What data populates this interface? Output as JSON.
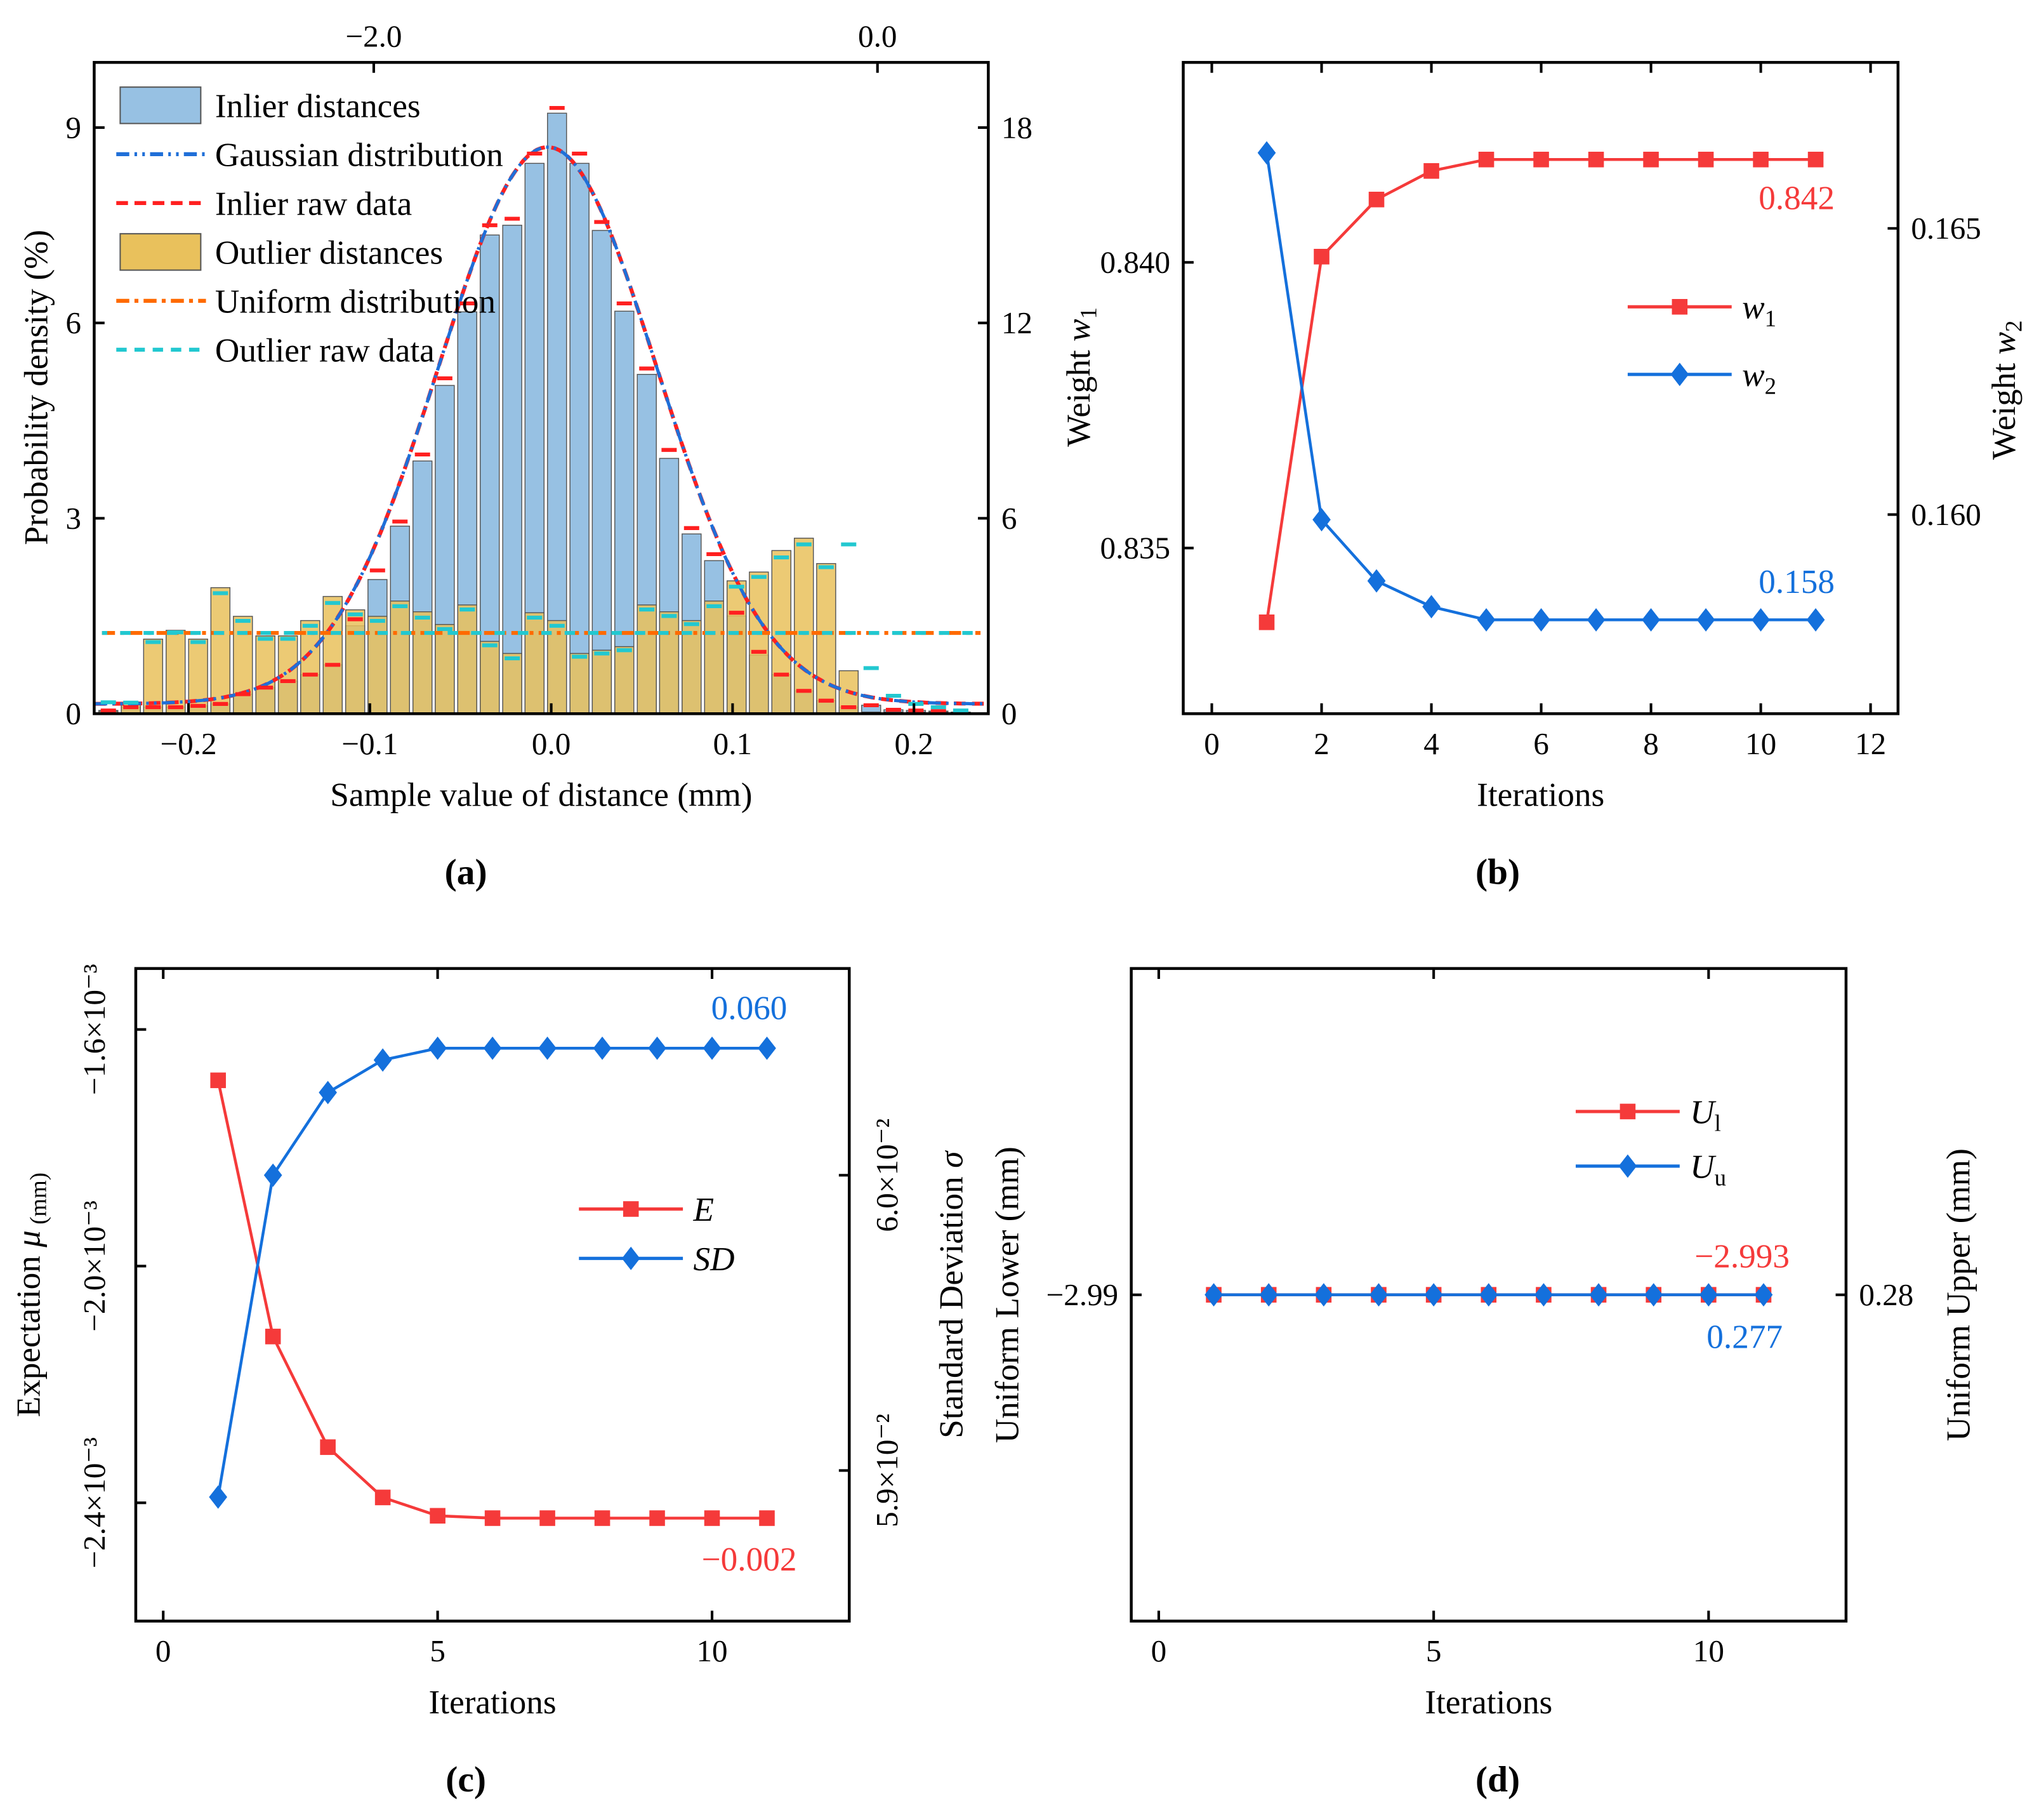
{
  "chart_data": [
    {
      "panel": "a",
      "type": "bar",
      "panel_label": "(a)",
      "xlabel": "Sample value of distance (mm)",
      "ylabel": "Probability density (%)",
      "xlim": [
        -0.252,
        0.241
      ],
      "ylim": [
        0,
        10
      ],
      "y2lim": [
        0,
        20
      ],
      "x2lim": [
        -3.11,
        0.44
      ],
      "xticks": [
        -0.2,
        -0.1,
        0.0,
        0.1,
        0.2
      ],
      "xtick_labels": [
        "−0.2",
        "−0.1",
        "0.0",
        "0.1",
        "0.2"
      ],
      "x2ticks": [
        -2.0,
        0.0
      ],
      "x2tick_labels": [
        "−2.0",
        "0.0"
      ],
      "yticks": [
        0,
        3,
        6,
        9
      ],
      "ytick_labels": [
        "0",
        "3",
        "6",
        "9"
      ],
      "y2ticks": [
        0,
        6,
        12,
        18
      ],
      "y2tick_labels": [
        "0",
        "6",
        "12",
        "18"
      ],
      "bin_width": 0.0105,
      "bin_centers": [
        -0.2442,
        -0.2318,
        -0.2195,
        -0.2071,
        -0.1947,
        -0.1824,
        -0.17,
        -0.1576,
        -0.1452,
        -0.1329,
        -0.1205,
        -0.1081,
        -0.0958,
        -0.0834,
        -0.071,
        -0.0587,
        -0.0463,
        -0.0339,
        -0.0215,
        -0.0092,
        0.0032,
        0.0156,
        0.0279,
        0.0403,
        0.0527,
        0.065,
        0.0774,
        0.0898,
        0.1022,
        0.1145,
        0.1269,
        0.1393,
        0.1516,
        0.164,
        0.1764,
        0.1887,
        0.2011,
        0.2135,
        0.2258
      ],
      "inlier_distances": [
        0.05,
        0.1,
        0.1,
        0.1,
        0.12,
        0.15,
        0.3,
        0.4,
        0.5,
        0.6,
        0.75,
        1.35,
        2.06,
        2.88,
        3.88,
        5.04,
        6.17,
        7.35,
        7.5,
        8.45,
        9.22,
        8.45,
        7.42,
        6.18,
        5.21,
        3.92,
        2.76,
        2.35,
        1.5,
        0.9,
        0.6,
        0.35,
        0.2,
        0.1,
        0.13,
        0.06,
        0.05,
        0.04,
        0.02
      ],
      "inlier_raw_data": [
        0.05,
        0.1,
        0.1,
        0.1,
        0.12,
        0.15,
        0.3,
        0.4,
        0.5,
        0.6,
        0.75,
        1.45,
        2.2,
        2.95,
        3.98,
        5.15,
        6.3,
        7.5,
        7.6,
        8.6,
        9.3,
        8.6,
        7.55,
        6.3,
        5.3,
        4.05,
        2.85,
        2.45,
        1.55,
        0.95,
        0.6,
        0.35,
        0.2,
        0.1,
        0.13,
        0.06,
        0.05,
        0.04,
        0.02
      ],
      "outlier_distances": [
        0.07,
        0.34,
        2.29,
        2.56,
        2.29,
        3.87,
        2.99,
        2.39,
        2.39,
        2.86,
        3.6,
        3.19,
        2.99,
        3.46,
        3.13,
        2.74,
        3.34,
        2.22,
        1.85,
        3.1,
        2.86,
        1.85,
        1.95,
        2.06,
        3.34,
        3.13,
        2.86,
        3.46,
        4.08,
        4.35,
        5.01,
        5.39,
        4.61,
        1.32,
        0.05,
        0.05,
        0.05,
        0.05,
        0.05
      ],
      "outlier_raw_data": [
        0.35,
        0.34,
        2.2,
        2.5,
        2.2,
        3.7,
        2.85,
        2.3,
        2.3,
        2.7,
        3.4,
        3.05,
        2.85,
        3.3,
        2.95,
        2.6,
        3.2,
        2.1,
        1.7,
        2.95,
        2.7,
        1.75,
        1.85,
        1.95,
        3.2,
        3.0,
        2.75,
        3.3,
        3.9,
        4.2,
        4.8,
        5.2,
        4.5,
        5.2,
        1.4,
        0.55,
        0.3,
        0.2,
        0.1
      ],
      "gaussian": {
        "mu": -0.002,
        "sigma": 0.06,
        "peak": 8.7,
        "base": 0.15
      },
      "uniform_level": 1.24,
      "legend": [
        "Inlier distances",
        "Gaussian distribution",
        "Inlier raw data",
        "Outlier distances",
        "Uniform distribution",
        "Outlier raw data"
      ],
      "legend_position": "top-left",
      "colors": {
        "inlier": "#97c1e3",
        "outlier": "#e9c15c",
        "gaussian": "#1f6fd8",
        "inlier_raw": "#ff2020",
        "uniform": "#ff6a00",
        "outlier_raw": "#22c8d0"
      }
    },
    {
      "panel": "b",
      "type": "line",
      "panel_label": "(b)",
      "xlabel": "Iterations",
      "ylabel": [
        "Weight ",
        "w",
        "1"
      ],
      "y2label": [
        "Weight ",
        "w",
        "2"
      ],
      "xlim": [
        -0.52,
        12.5
      ],
      "ylim": [
        0.8321,
        0.8435
      ],
      "y2lim": [
        0.15652,
        0.1679
      ],
      "xticks": [
        0,
        2,
        4,
        6,
        8,
        10,
        12
      ],
      "xtick_labels": [
        "0",
        "2",
        "4",
        "6",
        "8",
        "10",
        "12"
      ],
      "yticks": [
        0.835,
        0.84
      ],
      "ytick_labels": [
        "0.835",
        "0.840"
      ],
      "y2ticks": [
        0.16,
        0.165
      ],
      "y2tick_labels": [
        "0.160",
        "0.165"
      ],
      "x": [
        1,
        2,
        3,
        4,
        5,
        6,
        7,
        8,
        9,
        10,
        11
      ],
      "series": [
        {
          "name": "w",
          "sub": "1",
          "axis": "left",
          "marker": "square",
          "color": "#f53a3a",
          "values": [
            0.8337,
            0.8401,
            0.8411,
            0.8416,
            0.8418,
            0.8418,
            0.8418,
            0.8418,
            0.8418,
            0.8418,
            0.8418
          ],
          "annotation": "0.842"
        },
        {
          "name": "w",
          "sub": "2",
          "axis": "right",
          "marker": "diamond",
          "color": "#1470dc",
          "values": [
            0.16632,
            0.15991,
            0.15884,
            0.15839,
            0.15816,
            0.15816,
            0.15816,
            0.15816,
            0.15816,
            0.15816,
            0.15816
          ],
          "annotation": "0.158"
        }
      ]
    },
    {
      "panel": "c",
      "type": "line",
      "panel_label": "(c)",
      "xlabel": "Iterations",
      "ylabel": [
        "Expectation ",
        "μ",
        " (mm)"
      ],
      "y2label": [
        "Standard Deviation ",
        "σ",
        ""
      ],
      "xlim": [
        -0.5,
        12.5
      ],
      "ylim": [
        -0.0026,
        -0.001497
      ],
      "y2lim": [
        0.05849,
        0.0607
      ],
      "xticks": [
        0,
        5,
        10
      ],
      "xtick_labels": [
        "0",
        "5",
        "10"
      ],
      "yticks": [
        -0.0024,
        -0.002,
        -0.0016
      ],
      "ytick_labels": [
        "−2.4×10⁻³",
        "−2.0×10⁻³",
        "−1.6×10⁻³"
      ],
      "y2ticks": [
        0.059,
        0.06
      ],
      "y2tick_labels": [
        "5.9×10⁻²",
        "6.0×10⁻²"
      ],
      "x": [
        1,
        2,
        3,
        4,
        5,
        6,
        7,
        8,
        9,
        10,
        11
      ],
      "series": [
        {
          "name": "E",
          "sub": "",
          "axis": "left",
          "marker": "square",
          "color": "#f53a3a",
          "values": [
            -0.001686,
            -0.002119,
            -0.002306,
            -0.002391,
            -0.002422,
            -0.002426,
            -0.002426,
            -0.002426,
            -0.002426,
            -0.002426,
            -0.002426
          ],
          "annotation": "−0.002"
        },
        {
          "name": "SD",
          "sub": "",
          "axis": "right",
          "marker": "diamond",
          "color": "#1470dc",
          "values": [
            0.05891,
            0.06,
            0.06028,
            0.06039,
            0.06043,
            0.06043,
            0.06043,
            0.06043,
            0.06043,
            0.06043,
            0.06043
          ],
          "annotation": "0.060"
        }
      ]
    },
    {
      "panel": "d",
      "type": "line",
      "panel_label": "(d)",
      "xlabel": "Iterations",
      "ylabel": [
        "Uniform Lower (mm)",
        "",
        ""
      ],
      "y2label": [
        "Uniform Upper (mm)",
        "",
        ""
      ],
      "xlim": [
        -0.5,
        12.5
      ],
      "ylim": [
        -2.999,
        -2.987
      ],
      "y2lim": [
        0.271,
        0.283
      ],
      "xticks": [
        0,
        5,
        10
      ],
      "xtick_labels": [
        "0",
        "5",
        "10"
      ],
      "yticks": [
        -2.993
      ],
      "ytick_labels": [
        "−2.99"
      ],
      "y2ticks": [
        0.277
      ],
      "y2tick_labels": [
        "0.28"
      ],
      "x": [
        1,
        2,
        3,
        4,
        5,
        6,
        7,
        8,
        9,
        10,
        11
      ],
      "series": [
        {
          "name": "U",
          "sub": "l",
          "axis": "left",
          "marker": "square",
          "color": "#f53a3a",
          "values": [
            -2.993,
            -2.993,
            -2.993,
            -2.993,
            -2.993,
            -2.993,
            -2.993,
            -2.993,
            -2.993,
            -2.993,
            -2.993
          ],
          "annotation": "−2.993"
        },
        {
          "name": "U",
          "sub": "u",
          "axis": "right",
          "marker": "diamond",
          "color": "#1470dc",
          "values": [
            0.277,
            0.277,
            0.277,
            0.277,
            0.277,
            0.277,
            0.277,
            0.277,
            0.277,
            0.277,
            0.277
          ],
          "annotation": "0.277"
        }
      ]
    }
  ]
}
